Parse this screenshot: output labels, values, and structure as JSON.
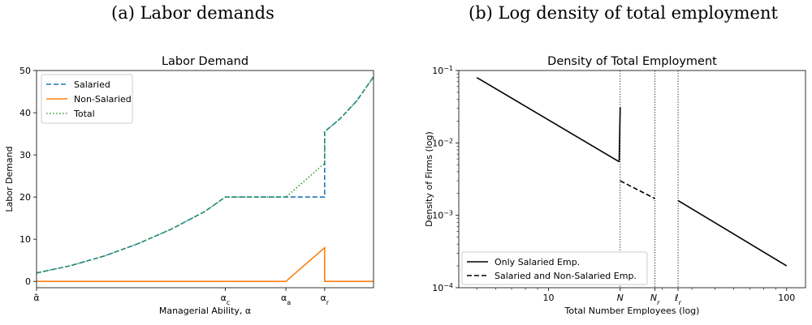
{
  "captions": {
    "a": "(a) Labor demands",
    "b": "(b) Log density of total employment"
  },
  "chart_data": [
    {
      "type": "line",
      "title": "Labor Demand",
      "xlabel": "Managerial Ability, α",
      "ylabel": "Labor Demand",
      "ylim": [
        -1.5,
        50
      ],
      "xlim": [
        0,
        1
      ],
      "yticks": [
        0,
        10,
        20,
        30,
        40,
        50
      ],
      "xticks": [
        {
          "label": "α̃",
          "x": 0.0
        },
        {
          "label": "α_c",
          "x": 0.56
        },
        {
          "label": "α_a",
          "x": 0.74
        },
        {
          "label": "α_r",
          "x": 0.855
        }
      ],
      "legend_position": "top-left",
      "series": [
        {
          "name": "Salaried",
          "color": "#1f77b4",
          "style": "dashed",
          "points": [
            [
              0,
              2
            ],
            [
              0.1,
              3.7
            ],
            [
              0.2,
              6.0
            ],
            [
              0.3,
              8.9
            ],
            [
              0.4,
              12.4
            ],
            [
              0.5,
              16.6
            ],
            [
              0.56,
              20
            ],
            [
              0.855,
              20
            ],
            [
              0.855,
              35.5
            ],
            [
              0.9,
              38.5
            ],
            [
              0.95,
              42.8
            ],
            [
              1.0,
              48.5
            ]
          ]
        },
        {
          "name": "Non-Salaried",
          "color": "#ff7f0e",
          "style": "solid",
          "points": [
            [
              0,
              0
            ],
            [
              0.74,
              0
            ],
            [
              0.855,
              8
            ],
            [
              0.855,
              0
            ],
            [
              1.0,
              0
            ]
          ]
        },
        {
          "name": "Total",
          "color": "#2ca02c",
          "style": "dotted",
          "points": [
            [
              0,
              2
            ],
            [
              0.1,
              3.7
            ],
            [
              0.2,
              6.0
            ],
            [
              0.3,
              8.9
            ],
            [
              0.4,
              12.4
            ],
            [
              0.5,
              16.6
            ],
            [
              0.56,
              20
            ],
            [
              0.74,
              20
            ],
            [
              0.855,
              28
            ],
            [
              0.855,
              35.5
            ],
            [
              0.9,
              38.5
            ],
            [
              0.95,
              42.8
            ],
            [
              1.0,
              48.5
            ]
          ]
        }
      ]
    },
    {
      "type": "line",
      "title": "Density of Total Employment",
      "xlabel": "Total Number Employees (log)",
      "ylabel": "Density of Firms (log)",
      "xscale": "log",
      "yscale": "log",
      "xlim": [
        4.2,
        120
      ],
      "ylim": [
        0.0001,
        0.1
      ],
      "xticks": [
        {
          "label": "10",
          "x": 10
        },
        {
          "label": "100",
          "x": 100
        }
      ],
      "xmarkers": [
        {
          "label": "N",
          "x": 20
        },
        {
          "label": "N_r",
          "x": 28
        },
        {
          "label": "ℓ_r",
          "x": 35
        }
      ],
      "yticks": [
        {
          "base": "10",
          "exp": "−1",
          "y": 0.1
        },
        {
          "base": "10",
          "exp": "−2",
          "y": 0.01
        },
        {
          "base": "10",
          "exp": "−3",
          "y": 0.001
        },
        {
          "base": "10",
          "exp": "−4",
          "y": 0.0001
        }
      ],
      "legend_position": "bottom-left",
      "series": [
        {
          "name": "Only Salaried Emp.",
          "color": "#000000",
          "style": "solid",
          "segments": [
            [
              [
                5,
                0.08
              ],
              [
                19.8,
                0.0055
              ]
            ],
            [
              [
                19.8,
                0.0055
              ],
              [
                20,
                0.031
              ]
            ],
            [
              [
                35,
                0.0016
              ],
              [
                100,
                0.0002
              ]
            ]
          ]
        },
        {
          "name": "Salaried and Non-Salaried Emp.",
          "color": "#000000",
          "style": "dashed",
          "segments": [
            [
              [
                20,
                0.003
              ],
              [
                28,
                0.0017
              ]
            ]
          ]
        }
      ]
    }
  ]
}
